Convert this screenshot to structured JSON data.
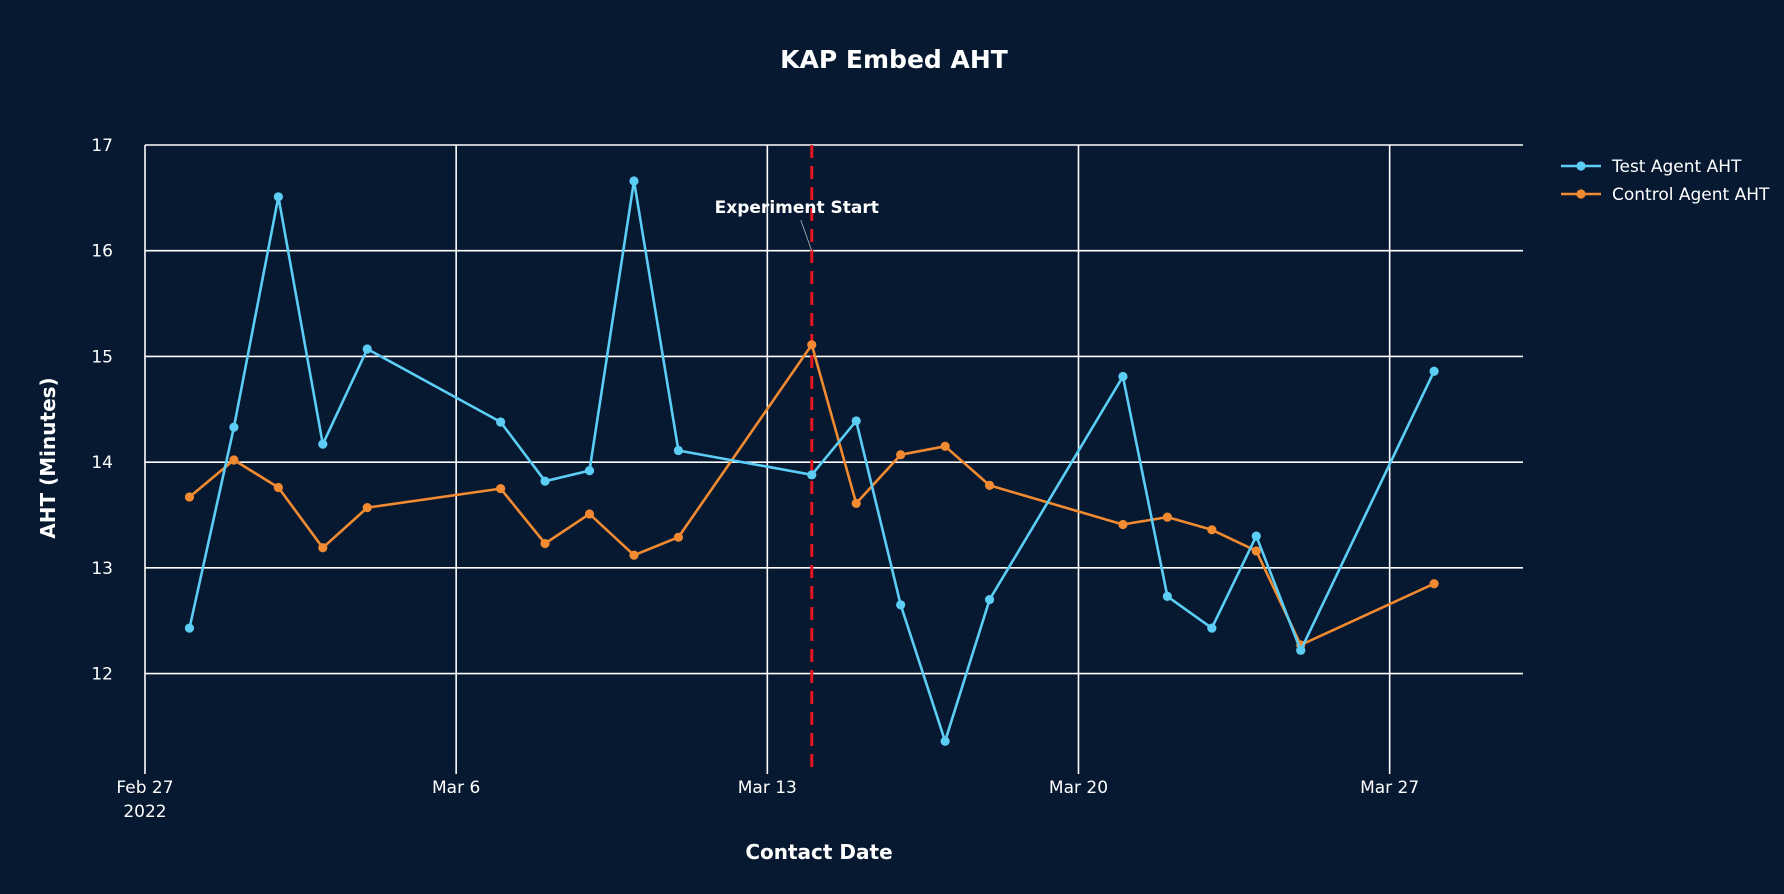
{
  "chart_data": {
    "type": "line",
    "title": "KAP Embed AHT",
    "xlabel": "Contact Date",
    "ylabel": "AHT (Minutes)",
    "ylim": [
      11.05,
      17
    ],
    "y_ticks": [
      12,
      13,
      14,
      15,
      16,
      17
    ],
    "x_ticks": [
      {
        "date": "2022-02-27",
        "label": "Feb 27",
        "sublabel": "2022"
      },
      {
        "date": "2022-03-06",
        "label": "Mar 6"
      },
      {
        "date": "2022-03-13",
        "label": "Mar 13"
      },
      {
        "date": "2022-03-20",
        "label": "Mar 20"
      },
      {
        "date": "2022-03-27",
        "label": "Mar 27"
      }
    ],
    "xlim": [
      "2022-02-27",
      "2022-03-30"
    ],
    "grid": true,
    "legend_position": "top-right",
    "annotation": {
      "text": "Experiment Start",
      "date": "2022-03-14",
      "line_color": "#e8141f",
      "line_style": "dashed"
    },
    "series": [
      {
        "name": "Test Agent AHT",
        "color": "#5ccdf5",
        "x": [
          "2022-02-28",
          "2022-03-01",
          "2022-03-02",
          "2022-03-03",
          "2022-03-04",
          "2022-03-07",
          "2022-03-08",
          "2022-03-09",
          "2022-03-10",
          "2022-03-11",
          "2022-03-14",
          "2022-03-15",
          "2022-03-16",
          "2022-03-17",
          "2022-03-18",
          "2022-03-21",
          "2022-03-22",
          "2022-03-23",
          "2022-03-24",
          "2022-03-25",
          "2022-03-28"
        ],
        "values": [
          12.43,
          14.33,
          16.51,
          14.17,
          15.07,
          14.38,
          13.82,
          13.92,
          16.66,
          14.11,
          13.88,
          14.39,
          12.65,
          11.36,
          12.7,
          14.81,
          12.73,
          12.43,
          13.3,
          12.22,
          14.86
        ]
      },
      {
        "name": "Control Agent AHT",
        "color": "#f28a31",
        "x": [
          "2022-02-28",
          "2022-03-01",
          "2022-03-02",
          "2022-03-03",
          "2022-03-04",
          "2022-03-07",
          "2022-03-08",
          "2022-03-09",
          "2022-03-10",
          "2022-03-11",
          "2022-03-14",
          "2022-03-15",
          "2022-03-16",
          "2022-03-17",
          "2022-03-18",
          "2022-03-21",
          "2022-03-22",
          "2022-03-23",
          "2022-03-24",
          "2022-03-25",
          "2022-03-28"
        ],
        "values": [
          13.67,
          14.02,
          13.76,
          13.19,
          13.57,
          13.75,
          13.23,
          13.51,
          13.12,
          13.29,
          15.11,
          13.61,
          14.07,
          14.15,
          13.78,
          13.41,
          13.48,
          13.36,
          13.16,
          12.27,
          12.85
        ]
      }
    ]
  }
}
